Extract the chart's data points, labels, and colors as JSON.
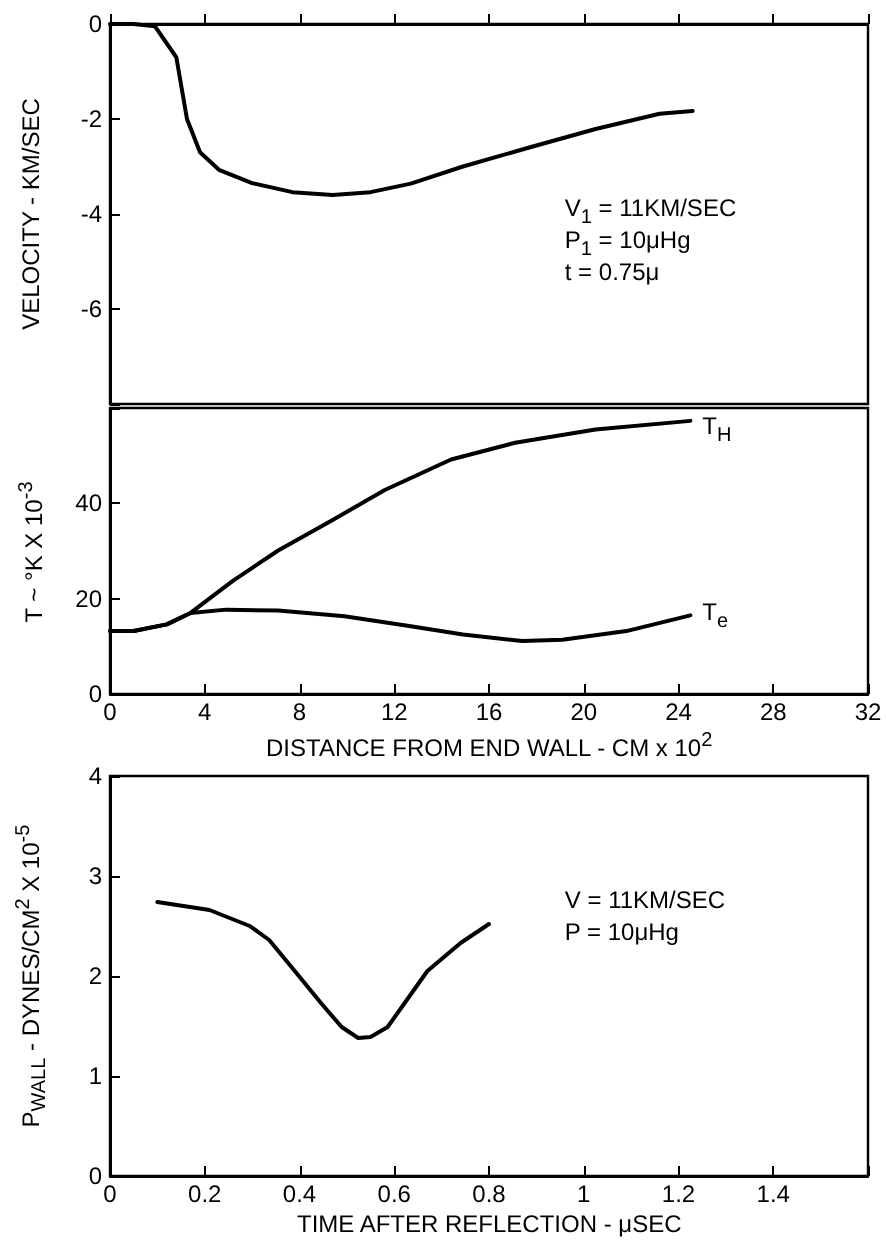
{
  "chart_data": [
    {
      "type": "line",
      "ylabel": "VELOCITY - KM/SEC",
      "marker": "none",
      "tick_labels": "y",
      "xlim": [
        0,
        32
      ],
      "xticks": [
        0,
        4,
        8,
        12,
        16,
        20,
        24,
        28,
        32
      ],
      "ylim": [
        -8,
        0
      ],
      "yticks": [
        {
          "value": -8,
          "label": null
        },
        -6,
        -4,
        -2,
        0
      ],
      "x": [
        0,
        1.0,
        1.9,
        2.8,
        3.25,
        3.8,
        4.6,
        6.0,
        7.7,
        9.4,
        11.0,
        12.7,
        14.9,
        17.7,
        20.5,
        23.2,
        24.6
      ],
      "series": [
        {
          "color": "#000000",
          "values": [
            0,
            0,
            -0.05,
            -0.7,
            -2.0,
            -2.7,
            -3.07,
            -3.35,
            -3.54,
            -3.6,
            -3.54,
            -3.36,
            -3.0,
            -2.6,
            -2.21,
            -1.89,
            -1.83
          ]
        }
      ],
      "annotations": [
        "V$_{1}$ = 11KM/SEC",
        "P$_{1}$ = 10μHg",
        "t  = 0.75μ"
      ]
    },
    {
      "type": "line",
      "xlabel": "DISTANCE FROM END WALL - CM x 10$^{2}$",
      "ylabel": "T ~ °K X 10$^{-3}$",
      "marker": "none",
      "xlim": [
        0,
        32
      ],
      "xticks": [
        0,
        4,
        8,
        12,
        16,
        20,
        24,
        28,
        32
      ],
      "ylim": [
        0,
        60
      ],
      "yticks": [
        0,
        20,
        40,
        {
          "value": 60,
          "label": null
        }
      ],
      "series": [
        {
          "name": "T$_{H}$",
          "color": "#000000",
          "x": [
            0,
            1.0,
            2.4,
            3.4,
            5.2,
            7.1,
            9.4,
            11.6,
            14.4,
            17.1,
            20.5,
            24.5
          ],
          "values": [
            13.2,
            13.2,
            14.6,
            17,
            23.8,
            30.1,
            36.5,
            42.8,
            49.2,
            52.7,
            55.5,
            57.3
          ]
        },
        {
          "name": "T$_{e}$",
          "color": "#000000",
          "x": [
            0,
            1.0,
            2.4,
            3.4,
            4.9,
            7.1,
            9.9,
            12.7,
            14.9,
            17.4,
            19.1,
            21.8,
            24.5
          ],
          "values": [
            13.2,
            13.2,
            14.6,
            17,
            17.7,
            17.5,
            16.3,
            14.2,
            12.5,
            11.1,
            11.4,
            13.2,
            16.5
          ]
        }
      ]
    },
    {
      "type": "line",
      "xlabel": "TIME AFTER REFLECTION - μSEC",
      "ylabel": "P$_{WALL}$ - DYNES/CM$^{2}$ X 10$^{-5}$",
      "marker": "none",
      "xlim": [
        0,
        1.6
      ],
      "xticks": [
        0,
        0.2,
        0.4,
        0.6,
        0.8,
        1.0,
        1.2,
        1.4,
        {
          "value": 1.6,
          "label": null
        }
      ],
      "ylim": [
        0,
        4
      ],
      "yticks": [
        0,
        1,
        2,
        3,
        4
      ],
      "x": [
        0.1,
        0.21,
        0.295,
        0.336,
        0.39,
        0.447,
        0.489,
        0.524,
        0.55,
        0.586,
        0.628,
        0.67,
        0.74,
        0.8
      ],
      "series": [
        {
          "color": "#000000",
          "values": [
            2.74,
            2.66,
            2.5,
            2.36,
            2.05,
            1.72,
            1.49,
            1.38,
            1.39,
            1.49,
            1.77,
            2.05,
            2.33,
            2.52
          ]
        }
      ],
      "annotations": [
        "V  = 11KM/SEC",
        "P  = 10μHg"
      ]
    }
  ]
}
